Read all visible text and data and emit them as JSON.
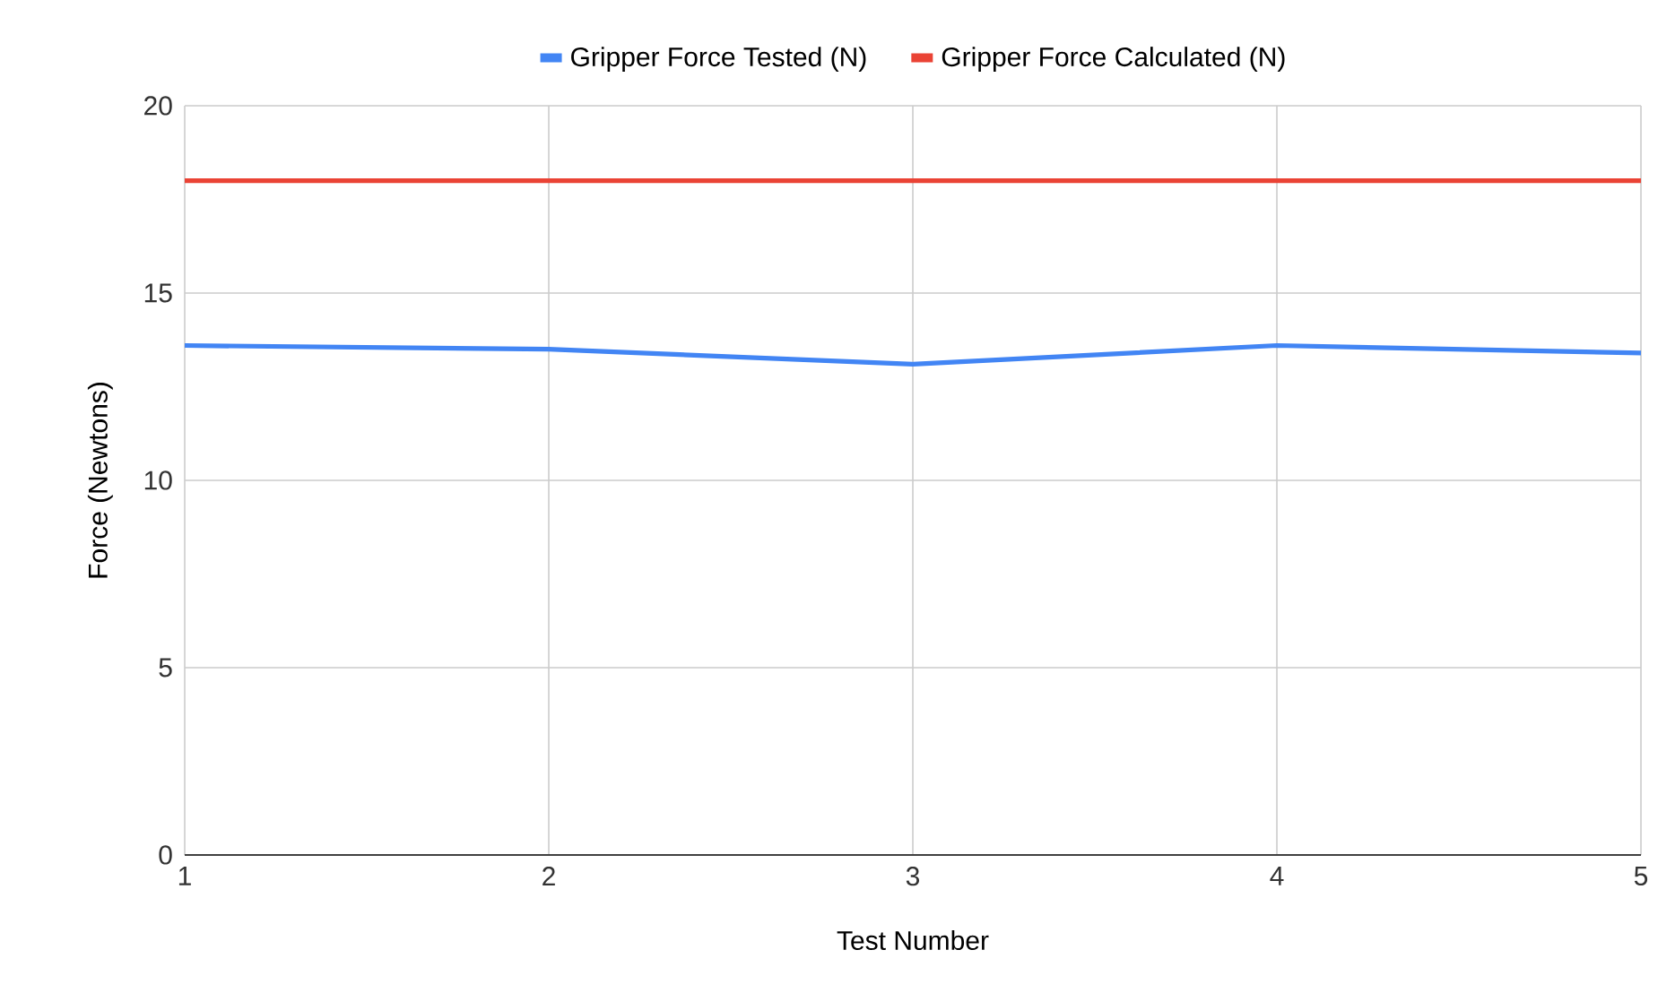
{
  "chart_data": {
    "type": "line",
    "xlabel": "Test Number",
    "ylabel": "Force (Newtons)",
    "x": [
      1,
      2,
      3,
      4,
      5
    ],
    "series": [
      {
        "name": "Gripper Force Tested (N)",
        "color": "#4285f4",
        "values": [
          13.6,
          13.5,
          13.1,
          13.6,
          13.4
        ]
      },
      {
        "name": "Gripper Force Calculated (N)",
        "color": "#ea4335",
        "values": [
          18,
          18,
          18,
          18,
          18
        ]
      }
    ],
    "xlim": [
      1,
      5
    ],
    "xticks": [
      1,
      2,
      3,
      4,
      5
    ],
    "ylim": [
      0,
      20
    ],
    "yticks": [
      0,
      5,
      10,
      15,
      20
    ],
    "grid": true,
    "legend": "top",
    "marker": "none",
    "line_style": "solid"
  }
}
